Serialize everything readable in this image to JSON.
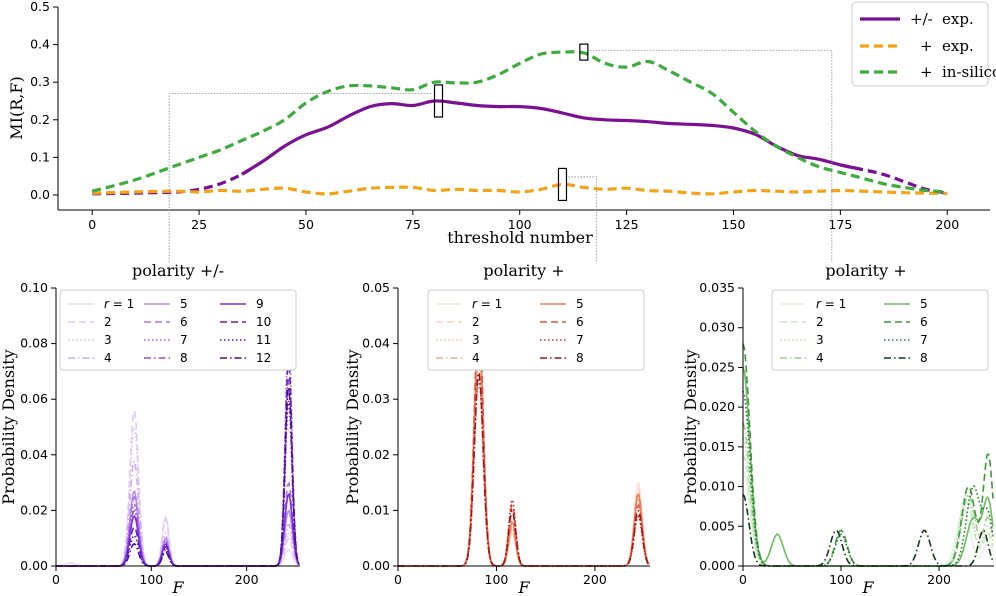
{
  "chart_data": [
    {
      "type": "line",
      "xlabel": "threshold number",
      "ylabel": "MI(R,F)",
      "xlim": [
        -8,
        210
      ],
      "ylim": [
        -0.04,
        0.5
      ],
      "xticks": [
        0,
        25,
        50,
        75,
        100,
        125,
        150,
        175,
        200
      ],
      "yticks": [
        0.0,
        0.1,
        0.2,
        0.3,
        0.4,
        0.5
      ],
      "ytick_labels": [
        "0.0",
        "0.1",
        "0.2",
        "0.3",
        "0.4",
        "0.5"
      ],
      "legend": {
        "position": "top-right"
      },
      "series": [
        {
          "name": "+/- exp.",
          "legend_sign": "+/-",
          "legend_text": "exp.",
          "color": "#7b1095",
          "style": "solid",
          "x": [
            0,
            10,
            20,
            25,
            30,
            35,
            40,
            45,
            50,
            55,
            60,
            65,
            70,
            75,
            80,
            85,
            90,
            95,
            100,
            105,
            110,
            115,
            120,
            125,
            130,
            135,
            140,
            145,
            150,
            155,
            160,
            165,
            170,
            175,
            180,
            185,
            190,
            195,
            200
          ],
          "y": [
            0.003,
            0.005,
            0.008,
            0.015,
            0.03,
            0.055,
            0.09,
            0.13,
            0.16,
            0.18,
            0.21,
            0.235,
            0.243,
            0.238,
            0.25,
            0.245,
            0.238,
            0.235,
            0.235,
            0.23,
            0.218,
            0.205,
            0.2,
            0.198,
            0.195,
            0.19,
            0.188,
            0.185,
            0.178,
            0.162,
            0.13,
            0.105,
            0.095,
            0.08,
            0.068,
            0.055,
            0.035,
            0.015,
            0.005
          ]
        },
        {
          "name": "+ exp.",
          "legend_sign": "+",
          "legend_text": "exp.",
          "color": "#f5a315",
          "style": "dashed",
          "x": [
            0,
            10,
            20,
            25,
            30,
            35,
            40,
            45,
            50,
            55,
            60,
            65,
            70,
            75,
            80,
            85,
            90,
            95,
            100,
            105,
            110,
            115,
            120,
            125,
            130,
            135,
            140,
            145,
            150,
            155,
            160,
            165,
            170,
            175,
            180,
            185,
            190,
            195,
            200
          ],
          "y": [
            0.005,
            0.008,
            0.01,
            0.008,
            0.012,
            0.01,
            0.015,
            0.018,
            0.008,
            0.003,
            0.01,
            0.018,
            0.02,
            0.02,
            0.012,
            0.015,
            0.012,
            0.012,
            0.008,
            0.015,
            0.028,
            0.02,
            0.015,
            0.018,
            0.012,
            0.01,
            0.005,
            0.003,
            0.008,
            0.012,
            0.01,
            0.008,
            0.01,
            0.012,
            0.01,
            0.008,
            0.006,
            0.005,
            0.004
          ]
        },
        {
          "name": "+ in-silico",
          "legend_sign": "+",
          "legend_text": "in-silico",
          "color": "#3dab3d",
          "style": "dashed",
          "x": [
            0,
            10,
            20,
            25,
            30,
            35,
            40,
            45,
            50,
            55,
            60,
            65,
            70,
            75,
            80,
            85,
            90,
            95,
            100,
            105,
            110,
            115,
            120,
            125,
            130,
            135,
            140,
            145,
            150,
            155,
            160,
            165,
            170,
            175,
            180,
            185,
            190,
            195,
            200
          ],
          "y": [
            0.01,
            0.04,
            0.08,
            0.1,
            0.12,
            0.145,
            0.17,
            0.2,
            0.245,
            0.275,
            0.29,
            0.29,
            0.285,
            0.28,
            0.3,
            0.298,
            0.3,
            0.32,
            0.35,
            0.375,
            0.38,
            0.378,
            0.35,
            0.34,
            0.355,
            0.33,
            0.3,
            0.27,
            0.22,
            0.17,
            0.13,
            0.1,
            0.075,
            0.06,
            0.045,
            0.03,
            0.02,
            0.012,
            0.008
          ]
        }
      ],
      "highlights": [
        {
          "x": 81,
          "y": 0.25
        },
        {
          "x": 115,
          "y": 0.38
        },
        {
          "x": 110,
          "y": 0.028
        }
      ],
      "connector_x": [
        18,
        173,
        118
      ]
    },
    {
      "type": "line",
      "title": "polarity +/-",
      "xlabel": "F",
      "ylabel": "Probability Density",
      "xlim": [
        0,
        256
      ],
      "ylim": [
        0,
        0.1
      ],
      "xticks": [
        0,
        100,
        200
      ],
      "yticks": [
        0.0,
        0.02,
        0.04,
        0.06,
        0.08,
        0.1
      ],
      "ytick_labels": [
        "0.00",
        "0.02",
        "0.04",
        "0.06",
        "0.08",
        "0.10"
      ],
      "legend": {
        "position": "top",
        "columns": 3,
        "labels": [
          "r = 1",
          "2",
          "3",
          "4",
          "5",
          "6",
          "7",
          "8",
          "9",
          "10",
          "11",
          "12"
        ]
      },
      "series": [
        {
          "name": "r = 1",
          "color": "#ecdcf7",
          "style": "solid",
          "peaks": [
            [
              15,
              0.0012,
              5
            ],
            [
              82,
              0.024,
              4.5
            ],
            [
              115,
              0.018,
              3.5
            ],
            [
              244,
              0.006,
              4
            ]
          ]
        },
        {
          "name": "2",
          "color": "#e0c8f4",
          "style": "dashed",
          "peaks": [
            [
              82,
              0.056,
              4.5
            ],
            [
              115,
              0.017,
              3.5
            ],
            [
              244,
              0.01,
              4
            ]
          ]
        },
        {
          "name": "3",
          "color": "#dcc3f1",
          "style": "dotted",
          "peaks": [
            [
              82,
              0.05,
              4.5
            ],
            [
              115,
              0.012,
              3.5
            ],
            [
              244,
              0.012,
              4
            ]
          ]
        },
        {
          "name": "4",
          "color": "#ceaaef",
          "style": "dashdot",
          "peaks": [
            [
              82,
              0.038,
              4.5
            ],
            [
              115,
              0.011,
              3.5
            ],
            [
              244,
              0.015,
              4
            ]
          ]
        },
        {
          "name": "5",
          "color": "#bd8cec",
          "style": "solid",
          "peaks": [
            [
              82,
              0.027,
              4.5
            ],
            [
              115,
              0.01,
              3.5
            ],
            [
              244,
              0.02,
              4
            ]
          ]
        },
        {
          "name": "6",
          "color": "#ad74e8",
          "style": "dashed",
          "peaks": [
            [
              82,
              0.025,
              4.5
            ],
            [
              115,
              0.009,
              3.5
            ],
            [
              244,
              0.03,
              4
            ]
          ]
        },
        {
          "name": "7",
          "color": "#9d5ee3",
          "style": "dotted",
          "peaks": [
            [
              82,
              0.022,
              4.5
            ],
            [
              115,
              0.009,
              3.5
            ],
            [
              244,
              0.083,
              3.5
            ]
          ]
        },
        {
          "name": "8",
          "color": "#9050df",
          "style": "dashdot",
          "peaks": [
            [
              82,
              0.02,
              4.5
            ],
            [
              115,
              0.008,
              3.5
            ],
            [
              244,
              0.068,
              3.5
            ]
          ]
        },
        {
          "name": "9",
          "color": "#7d2ce0",
          "style": "solid",
          "peaks": [
            [
              82,
              0.018,
              4.5
            ],
            [
              115,
              0.008,
              3.5
            ],
            [
              244,
              0.026,
              4
            ]
          ]
        },
        {
          "name": "10",
          "color": "#6d1fc8",
          "style": "dashed",
          "peaks": [
            [
              82,
              0.014,
              4.5
            ],
            [
              115,
              0.007,
              3.5
            ],
            [
              244,
              0.075,
              3.5
            ]
          ]
        },
        {
          "name": "11",
          "color": "#5a15a8",
          "style": "dotted",
          "peaks": [
            [
              82,
              0.011,
              4.5
            ],
            [
              115,
              0.006,
              3.5
            ],
            [
              244,
              0.06,
              3.5
            ]
          ]
        },
        {
          "name": "12",
          "color": "#4a0f90",
          "style": "dashdot",
          "peaks": [
            [
              82,
              0.008,
              4.5
            ],
            [
              115,
              0.005,
              3.5
            ],
            [
              244,
              0.065,
              3.5
            ]
          ]
        }
      ]
    },
    {
      "type": "line",
      "title": "polarity +",
      "xlabel": "F",
      "ylabel": "Probability Density",
      "xlim": [
        0,
        256
      ],
      "ylim": [
        0,
        0.05
      ],
      "xticks": [
        0,
        100,
        200
      ],
      "yticks": [
        0.0,
        0.01,
        0.02,
        0.03,
        0.04,
        0.05
      ],
      "ytick_labels": [
        "0.00",
        "0.01",
        "0.02",
        "0.03",
        "0.04",
        "0.05"
      ],
      "legend": {
        "position": "top-right",
        "columns": 2,
        "labels": [
          "r = 1",
          "2",
          "3",
          "4",
          "5",
          "6",
          "7",
          "8"
        ]
      },
      "series": [
        {
          "name": "r = 1",
          "color": "#fde3d6",
          "style": "solid",
          "peaks": [
            [
              82,
              0.038,
              4.5
            ],
            [
              116,
              0.006,
              3.5
            ],
            [
              244,
              0.015,
              4
            ]
          ]
        },
        {
          "name": "2",
          "color": "#fbd2bf",
          "style": "dashed",
          "peaks": [
            [
              82,
              0.04,
              4.5
            ],
            [
              116,
              0.006,
              3.5
            ],
            [
              244,
              0.014,
              4
            ]
          ]
        },
        {
          "name": "3",
          "color": "#f9c1a8",
          "style": "dotted",
          "peaks": [
            [
              82,
              0.036,
              4.5
            ],
            [
              116,
              0.007,
              3.5
            ],
            [
              244,
              0.013,
              4
            ]
          ]
        },
        {
          "name": "4",
          "color": "#f6a98a",
          "style": "dashdot",
          "peaks": [
            [
              82,
              0.04,
              4.5
            ],
            [
              116,
              0.007,
              3.5
            ],
            [
              244,
              0.012,
              4
            ]
          ]
        },
        {
          "name": "5",
          "color": "#f07b55",
          "style": "solid",
          "peaks": [
            [
              82,
              0.043,
              4.5
            ],
            [
              116,
              0.008,
              3.5
            ],
            [
              244,
              0.013,
              4
            ]
          ]
        },
        {
          "name": "6",
          "color": "#e4553a",
          "style": "dashed",
          "peaks": [
            [
              82,
              0.046,
              4.5
            ],
            [
              116,
              0.011,
              3.5
            ],
            [
              244,
              0.011,
              4
            ]
          ]
        },
        {
          "name": "7",
          "color": "#cf2a24",
          "style": "dotted",
          "peaks": [
            [
              82,
              0.034,
              4.5
            ],
            [
              116,
              0.012,
              3.5
            ],
            [
              244,
              0.009,
              4
            ]
          ]
        },
        {
          "name": "8",
          "color": "#a61212",
          "style": "dashdot",
          "peaks": [
            [
              82,
              0.035,
              4.5
            ],
            [
              116,
              0.01,
              3.5
            ],
            [
              244,
              0.01,
              4
            ]
          ]
        }
      ]
    },
    {
      "type": "line",
      "title": "polarity +",
      "xlabel": "F",
      "ylabel": "Probability Density",
      "xlim": [
        0,
        256
      ],
      "ylim": [
        0,
        0.035
      ],
      "xticks": [
        0,
        100,
        200
      ],
      "yticks": [
        0.0,
        0.005,
        0.01,
        0.015,
        0.02,
        0.025,
        0.03,
        0.035
      ],
      "ytick_labels": [
        "0.000",
        "0.005",
        "0.010",
        "0.015",
        "0.020",
        "0.025",
        "0.030",
        "0.035"
      ],
      "legend": {
        "position": "top-right",
        "columns": 2,
        "labels": [
          "r = 1",
          "2",
          "3",
          "4",
          "5",
          "6",
          "7",
          "8"
        ]
      },
      "series": [
        {
          "name": "r = 1",
          "color": "#e4f2e0",
          "style": "solid",
          "peaks": [
            [
              0,
              0.012,
              7
            ],
            [
              225,
              0.007,
              7
            ],
            [
              250,
              0.003,
              5
            ]
          ]
        },
        {
          "name": "2",
          "color": "#cce8c5",
          "style": "dashed",
          "peaks": [
            [
              0,
              0.014,
              7
            ],
            [
              228,
              0.008,
              7
            ],
            [
              250,
              0.004,
              5
            ]
          ]
        },
        {
          "name": "3",
          "color": "#b6deab",
          "style": "dotted",
          "peaks": [
            [
              0,
              0.016,
              7
            ],
            [
              228,
              0.009,
              7
            ],
            [
              250,
              0.005,
              5
            ]
          ]
        },
        {
          "name": "4",
          "color": "#99d18b",
          "style": "dashdot",
          "peaks": [
            [
              0,
              0.018,
              7
            ],
            [
              230,
              0.009,
              7
            ],
            [
              250,
              0.006,
              5
            ]
          ]
        },
        {
          "name": "5",
          "color": "#6cbd5f",
          "style": "solid",
          "peaks": [
            [
              0,
              0.025,
              7
            ],
            [
              35,
              0.004,
              6
            ],
            [
              235,
              0.006,
              7
            ],
            [
              250,
              0.008,
              5
            ]
          ]
        },
        {
          "name": "6",
          "color": "#3c9c3c",
          "style": "dashed",
          "peaks": [
            [
              0,
              0.028,
              7
            ],
            [
              100,
              0.0045,
              6
            ],
            [
              230,
              0.01,
              7
            ],
            [
              250,
              0.014,
              5
            ]
          ]
        },
        {
          "name": "7",
          "color": "#1e7a2a",
          "style": "dotted",
          "peaks": [
            [
              0,
              0.022,
              7
            ],
            [
              100,
              0.004,
              6
            ],
            [
              235,
              0.01,
              7
            ],
            [
              250,
              0.006,
              5
            ]
          ]
        },
        {
          "name": "8",
          "color": "#123d18",
          "style": "dashdot",
          "peaks": [
            [
              0,
              0.009,
              6
            ],
            [
              95,
              0.0045,
              6
            ],
            [
              185,
              0.0045,
              6
            ],
            [
              245,
              0.0045,
              5
            ]
          ]
        }
      ]
    }
  ]
}
